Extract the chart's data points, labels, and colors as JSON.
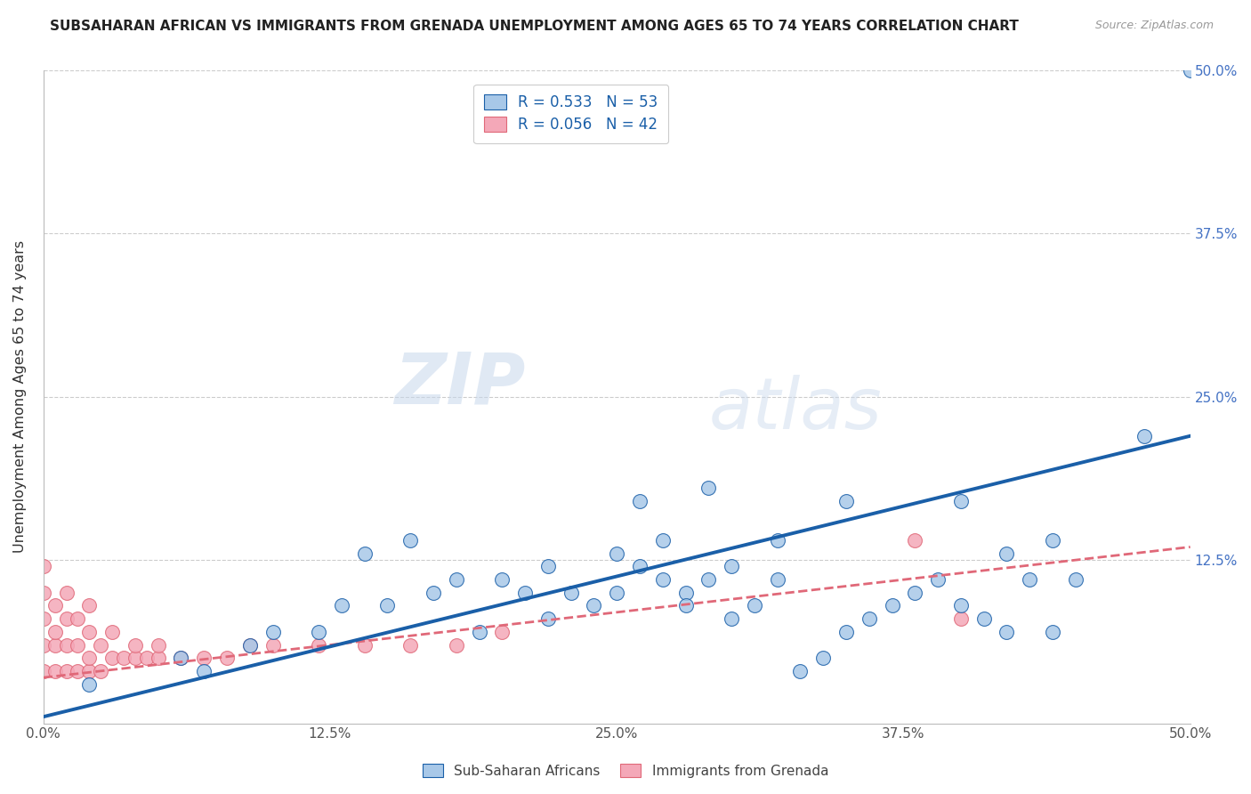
{
  "title": "SUBSAHARAN AFRICAN VS IMMIGRANTS FROM GRENADA UNEMPLOYMENT AMONG AGES 65 TO 74 YEARS CORRELATION CHART",
  "source": "Source: ZipAtlas.com",
  "ylabel": "Unemployment Among Ages 65 to 74 years",
  "xlim": [
    0.0,
    0.5
  ],
  "ylim": [
    0.0,
    0.5
  ],
  "xtick_vals": [
    0.0,
    0.125,
    0.25,
    0.375,
    0.5
  ],
  "xtick_labels": [
    "0.0%",
    "12.5%",
    "25.0%",
    "37.5%",
    "50.0%"
  ],
  "ytick_vals": [
    0.0,
    0.125,
    0.25,
    0.375,
    0.5
  ],
  "R_blue": 0.533,
  "N_blue": 53,
  "R_pink": 0.056,
  "N_pink": 42,
  "blue_color": "#A8C8E8",
  "pink_color": "#F4A8B8",
  "blue_line_color": "#1A5FA8",
  "pink_line_color": "#E06878",
  "legend_label_blue": "Sub-Saharan Africans",
  "legend_label_pink": "Immigrants from Grenada",
  "watermark_zip": "ZIP",
  "watermark_atlas": "atlas",
  "blue_x": [
    0.48,
    0.02,
    0.06,
    0.09,
    0.12,
    0.13,
    0.15,
    0.17,
    0.18,
    0.2,
    0.21,
    0.22,
    0.22,
    0.23,
    0.24,
    0.25,
    0.25,
    0.26,
    0.27,
    0.27,
    0.28,
    0.28,
    0.29,
    0.3,
    0.3,
    0.31,
    0.32,
    0.33,
    0.34,
    0.35,
    0.36,
    0.37,
    0.38,
    0.39,
    0.4,
    0.4,
    0.41,
    0.42,
    0.43,
    0.44,
    0.45,
    0.07,
    0.1,
    0.14,
    0.16,
    0.19,
    0.29,
    0.35,
    0.42,
    0.44,
    0.5,
    0.26,
    0.32
  ],
  "blue_y": [
    0.22,
    0.03,
    0.05,
    0.06,
    0.07,
    0.09,
    0.09,
    0.1,
    0.11,
    0.11,
    0.1,
    0.12,
    0.08,
    0.1,
    0.09,
    0.1,
    0.13,
    0.12,
    0.11,
    0.14,
    0.1,
    0.09,
    0.11,
    0.12,
    0.08,
    0.09,
    0.11,
    0.04,
    0.05,
    0.07,
    0.08,
    0.09,
    0.1,
    0.11,
    0.09,
    0.17,
    0.08,
    0.07,
    0.11,
    0.07,
    0.11,
    0.04,
    0.07,
    0.13,
    0.14,
    0.07,
    0.18,
    0.17,
    0.13,
    0.14,
    0.5,
    0.17,
    0.14
  ],
  "pink_x": [
    0.0,
    0.0,
    0.0,
    0.0,
    0.0,
    0.005,
    0.005,
    0.005,
    0.005,
    0.01,
    0.01,
    0.01,
    0.01,
    0.015,
    0.015,
    0.015,
    0.02,
    0.02,
    0.02,
    0.02,
    0.025,
    0.025,
    0.03,
    0.03,
    0.035,
    0.04,
    0.04,
    0.045,
    0.05,
    0.05,
    0.06,
    0.07,
    0.08,
    0.09,
    0.1,
    0.12,
    0.14,
    0.16,
    0.18,
    0.2,
    0.38,
    0.4
  ],
  "pink_y": [
    0.04,
    0.06,
    0.08,
    0.1,
    0.12,
    0.04,
    0.06,
    0.07,
    0.09,
    0.04,
    0.06,
    0.08,
    0.1,
    0.04,
    0.06,
    0.08,
    0.04,
    0.05,
    0.07,
    0.09,
    0.04,
    0.06,
    0.05,
    0.07,
    0.05,
    0.05,
    0.06,
    0.05,
    0.05,
    0.06,
    0.05,
    0.05,
    0.05,
    0.06,
    0.06,
    0.06,
    0.06,
    0.06,
    0.06,
    0.07,
    0.14,
    0.08
  ],
  "blue_line_x": [
    0.0,
    0.5
  ],
  "blue_line_y": [
    0.005,
    0.22
  ],
  "pink_line_x": [
    0.0,
    0.5
  ],
  "pink_line_y": [
    0.035,
    0.135
  ]
}
